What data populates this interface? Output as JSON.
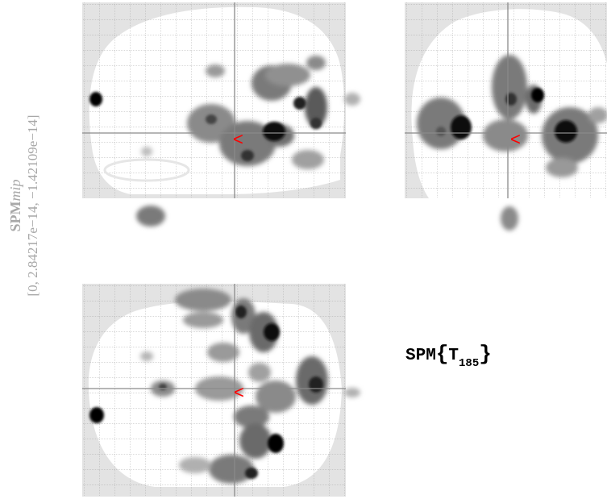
{
  "side_label": {
    "spm": "SPM",
    "mip": "mip",
    "range": "[0, 2.84217e−14, −1.42109e−14]"
  },
  "stat": {
    "prefix": "SPM",
    "open": "{",
    "symbol": "T",
    "df": "185",
    "close": "}"
  },
  "colors": {
    "background_field": "#e3e3e3",
    "brain": "#ffffff",
    "grid": "#a0a0a0",
    "crosshair": "#8a8a8a",
    "cursor": "#ff0000",
    "blob_dark": "#000000"
  },
  "cursor_glyph": "<"
}
